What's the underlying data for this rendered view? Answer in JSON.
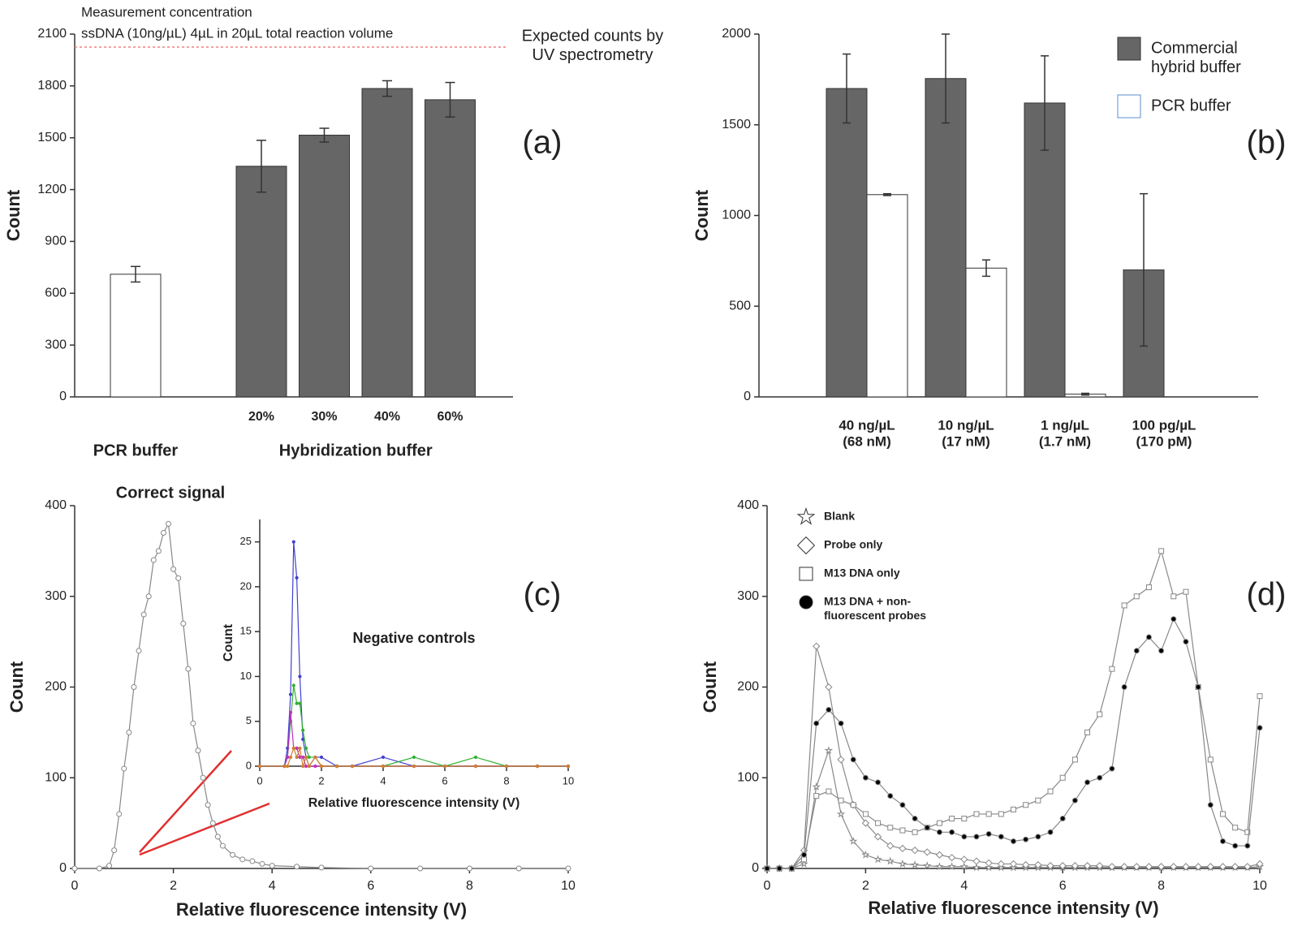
{
  "chart_data": [
    {
      "type": "bar",
      "panel_label": "(a)",
      "ylabel": "Count",
      "notes": [
        "Measurement concentration",
        "ssDNA (10ng/µL) 4µL in 20µL total reaction volume"
      ],
      "categories": [
        null,
        "20%",
        "30%",
        "40%",
        "60%"
      ],
      "group_labels": [
        "PCR buffer",
        "Hybridization buffer"
      ],
      "values": [
        710,
        1335,
        1515,
        1785,
        1720
      ],
      "errors": [
        45,
        150,
        40,
        45,
        100
      ],
      "colors": [
        "#ffffff",
        "#666666",
        "#666666",
        "#666666",
        "#666666"
      ],
      "reference_line": {
        "value": 2025,
        "color": "#f08080",
        "label": "Expected counts by\nUV spectrometry"
      },
      "ylim": [
        0,
        2100
      ],
      "yticks": [
        0,
        300,
        600,
        900,
        1200,
        1500,
        1800,
        2100
      ]
    },
    {
      "type": "bar",
      "panel_label": "(b)",
      "ylabel": "Count",
      "categories": [
        "40 ng/µL\n(68 nM)",
        "10 ng/µL\n(17 nM)",
        "1 ng/µL\n(1.7 nM)",
        "100 pg/µL\n(170 pM)"
      ],
      "series": [
        {
          "name": "Commercial\nhybrid buffer",
          "color": "#666666",
          "edge": "#333333",
          "values": [
            1700,
            1755,
            1620,
            700
          ],
          "errors": [
            190,
            245,
            260,
            420
          ]
        },
        {
          "name": "PCR buffer",
          "color": "#ffffff",
          "edge": "#5b8fc9",
          "values": [
            1115,
            710,
            15,
            null
          ],
          "errors": [
            5,
            45,
            5,
            null
          ]
        }
      ],
      "ylim": [
        0,
        2000
      ],
      "yticks": [
        0,
        500,
        1000,
        1500,
        2000
      ]
    },
    {
      "type": "line",
      "panel_label": "(c)",
      "annotation": "Correct signal",
      "xlabel": "Relative fluorescence intensity (V)",
      "ylabel": "Count",
      "x": [
        0,
        0.5,
        0.7,
        0.8,
        0.9,
        1.0,
        1.1,
        1.2,
        1.3,
        1.4,
        1.5,
        1.6,
        1.7,
        1.8,
        1.9,
        2.0,
        2.1,
        2.2,
        2.3,
        2.4,
        2.5,
        2.6,
        2.7,
        2.8,
        2.9,
        3.0,
        3.2,
        3.4,
        3.6,
        3.8,
        4.0,
        4.5,
        5,
        6,
        7,
        8,
        9,
        10
      ],
      "series": [
        {
          "color": "#888888",
          "marker": "circle",
          "fill": "#ffffff",
          "values": [
            0,
            0,
            3,
            20,
            60,
            110,
            150,
            200,
            240,
            280,
            300,
            340,
            350,
            370,
            380,
            330,
            320,
            270,
            220,
            160,
            130,
            100,
            70,
            50,
            35,
            25,
            15,
            10,
            8,
            5,
            3,
            2,
            1,
            0,
            0,
            0,
            0,
            0
          ]
        }
      ],
      "xlim": [
        0,
        10
      ],
      "xticks": [
        0,
        2,
        4,
        6,
        8,
        10
      ],
      "ylim": [
        0,
        400
      ],
      "yticks": [
        0,
        100,
        200,
        300,
        400
      ]
    },
    {
      "type": "line",
      "title": "Negative controls",
      "xlabel": "Relative fluorescence intensity (V)",
      "ylabel": "Count",
      "x": [
        0,
        0.8,
        0.9,
        1.0,
        1.1,
        1.2,
        1.3,
        1.4,
        1.5,
        1.6,
        1.8,
        2.0,
        2.5,
        3,
        4,
        5,
        6,
        7,
        8,
        9,
        10
      ],
      "series": [
        {
          "color": "#4040d0",
          "marker": "dot",
          "values": [
            0,
            0,
            2,
            8,
            25,
            21,
            10,
            3,
            1,
            0,
            1,
            1,
            0,
            0,
            1,
            0,
            0,
            0,
            0,
            0,
            0
          ]
        },
        {
          "color": "#30b030",
          "marker": "dot",
          "values": [
            0,
            0,
            1,
            5,
            9,
            7,
            7,
            4,
            2,
            1,
            1,
            0,
            0,
            0,
            0,
            1,
            0,
            1,
            0,
            0,
            0
          ]
        },
        {
          "color": "#c030c0",
          "marker": "dot",
          "values": [
            0,
            0,
            1,
            6,
            2,
            2,
            1,
            1,
            0,
            0,
            0,
            0,
            0,
            0,
            0,
            0,
            0,
            0,
            0,
            0,
            0
          ]
        },
        {
          "color": "#d08030",
          "marker": "dot",
          "values": [
            0,
            0,
            0,
            1,
            2,
            1,
            2,
            0,
            1,
            0,
            1,
            0,
            0,
            0,
            0,
            0,
            0,
            0,
            0,
            0,
            0
          ]
        }
      ],
      "xlim": [
        0,
        10
      ],
      "xticks": [
        0,
        2,
        4,
        6,
        8,
        10
      ],
      "ylim": [
        0,
        27.5
      ],
      "yticks": [
        0,
        5,
        10,
        15,
        20,
        25
      ]
    },
    {
      "type": "line",
      "panel_label": "(d)",
      "xlabel": "Relative fluorescence intensity (V)",
      "ylabel": "Count",
      "x": [
        0,
        0.25,
        0.5,
        0.75,
        1,
        1.25,
        1.5,
        1.75,
        2,
        2.25,
        2.5,
        2.75,
        3,
        3.25,
        3.5,
        3.75,
        4,
        4.25,
        4.5,
        4.75,
        5,
        5.25,
        5.5,
        5.75,
        6,
        6.25,
        6.5,
        6.75,
        7,
        7.25,
        7.5,
        7.75,
        8,
        8.25,
        8.5,
        8.75,
        9,
        9.25,
        9.5,
        9.75,
        10
      ],
      "series": [
        {
          "name": "Blank",
          "color": "#888888",
          "marker": "star",
          "fill": "#ffffff",
          "values": [
            0,
            0,
            0,
            5,
            90,
            130,
            60,
            30,
            15,
            10,
            8,
            5,
            4,
            3,
            2,
            2,
            2,
            1,
            1,
            1,
            1,
            1,
            1,
            1,
            1,
            1,
            1,
            1,
            1,
            1,
            1,
            1,
            1,
            1,
            1,
            1,
            1,
            1,
            1,
            1,
            2
          ]
        },
        {
          "name": "Probe only",
          "color": "#888888",
          "marker": "diamond",
          "fill": "#ffffff",
          "values": [
            0,
            0,
            0,
            20,
            245,
            200,
            120,
            70,
            50,
            35,
            25,
            22,
            20,
            18,
            15,
            12,
            10,
            8,
            6,
            5,
            5,
            4,
            4,
            3,
            3,
            3,
            3,
            3,
            2,
            2,
            2,
            2,
            2,
            2,
            2,
            2,
            2,
            2,
            2,
            2,
            5
          ]
        },
        {
          "name": "M13 DNA only",
          "color": "#888888",
          "marker": "square",
          "fill": "#ffffff",
          "values": [
            0,
            0,
            0,
            10,
            80,
            85,
            75,
            70,
            60,
            50,
            45,
            42,
            40,
            45,
            50,
            55,
            55,
            60,
            60,
            60,
            65,
            70,
            75,
            85,
            100,
            120,
            150,
            170,
            220,
            290,
            300,
            310,
            350,
            300,
            305,
            200,
            120,
            60,
            45,
            40,
            190
          ]
        },
        {
          "name": "M13 DNA + non-\nfluorescent probes",
          "color": "#888888",
          "marker": "circle",
          "fill": "#000000",
          "values": [
            0,
            0,
            0,
            15,
            160,
            175,
            160,
            120,
            100,
            95,
            80,
            70,
            55,
            45,
            40,
            40,
            35,
            35,
            38,
            35,
            30,
            32,
            35,
            40,
            55,
            75,
            95,
            100,
            110,
            200,
            240,
            255,
            240,
            275,
            250,
            200,
            70,
            30,
            25,
            25,
            155
          ]
        }
      ],
      "xlim": [
        0,
        10
      ],
      "xticks": [
        0,
        2,
        4,
        6,
        8,
        10
      ],
      "ylim": [
        0,
        400
      ],
      "yticks": [
        0,
        100,
        200,
        300,
        400
      ]
    }
  ]
}
